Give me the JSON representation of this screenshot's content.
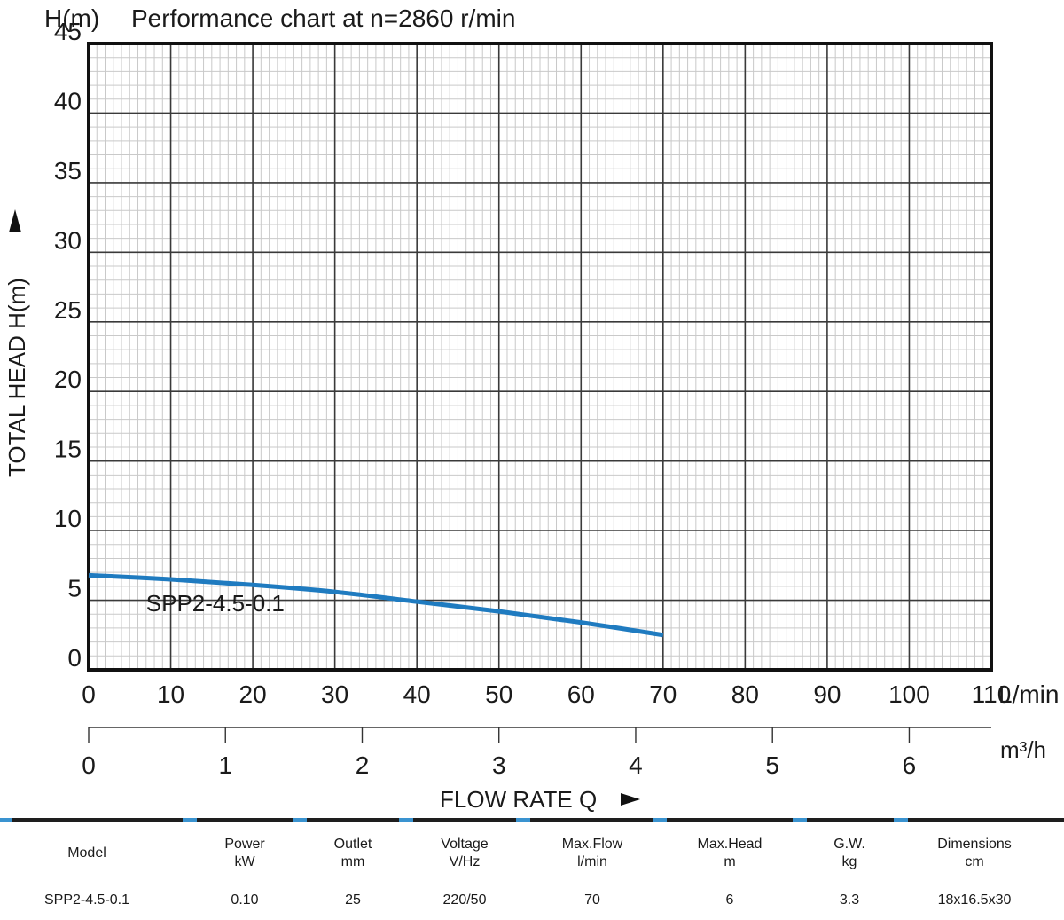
{
  "chart_data": {
    "type": "line",
    "title": "Performance chart at n=2860 r/min",
    "y_unit": "H(m)",
    "ylabel": "TOTAL HEAD H(m)",
    "xlabel": "FLOW RATE Q",
    "x_unit": "L/min",
    "x2_unit": "m³/h",
    "xlim": [
      0,
      110
    ],
    "ylim": [
      0,
      45
    ],
    "x_ticks": [
      "0",
      "10",
      "20",
      "30",
      "40",
      "50",
      "60",
      "70",
      "80",
      "90",
      "100",
      "110"
    ],
    "y_ticks": [
      "0",
      "5",
      "10",
      "15",
      "20",
      "25",
      "30",
      "35",
      "40",
      "45"
    ],
    "x2_ticks": [
      "0",
      "1",
      "2",
      "3",
      "4",
      "5",
      "6"
    ],
    "grid": true,
    "series": [
      {
        "name": "SPP2-4.5-0.1",
        "color": "#1f7bc0",
        "x": [
          0,
          10,
          20,
          30,
          40,
          50,
          60,
          70
        ],
        "y": [
          6.8,
          6.5,
          6.1,
          5.6,
          4.9,
          4.2,
          3.4,
          2.5
        ]
      }
    ]
  },
  "spec_table": {
    "headers": [
      [
        "Model"
      ],
      [
        "Power",
        "kW"
      ],
      [
        "Outlet",
        "mm"
      ],
      [
        "Voltage",
        "V/Hz"
      ],
      [
        "Max.Flow",
        "l/min"
      ],
      [
        "Max.Head",
        "m"
      ],
      [
        "G.W.",
        "kg"
      ],
      [
        "Dimensions",
        "cm"
      ]
    ],
    "rows": [
      [
        "SPP2-4.5-0.1",
        "0.10",
        "25",
        "220/50",
        "70",
        "6",
        "3.3",
        "18x16.5x30"
      ]
    ]
  }
}
